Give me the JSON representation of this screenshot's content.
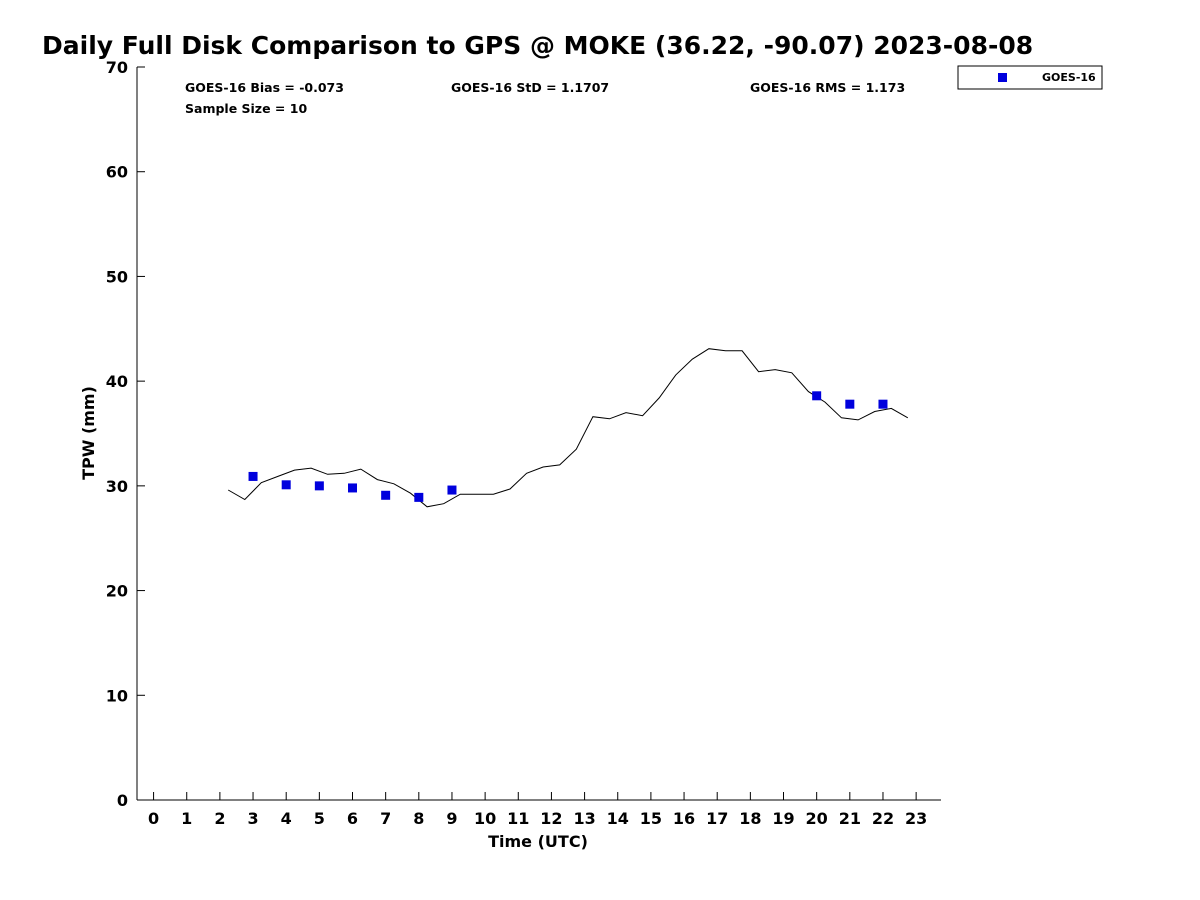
{
  "chart_data": {
    "type": "line",
    "title": "Daily Full Disk Comparison to GPS @ MOKE (36.22, -90.07) 2023-08-08",
    "xlabel": "Time (UTC)",
    "ylabel": "TPW (mm)",
    "xlim": [
      -0.5,
      23.75
    ],
    "ylim": [
      0,
      70
    ],
    "xticks": [
      "0",
      "1",
      "2",
      "3",
      "4",
      "5",
      "6",
      "7",
      "8",
      "9",
      "10",
      "11",
      "12",
      "13",
      "14",
      "15",
      "16",
      "17",
      "18",
      "19",
      "20",
      "21",
      "22",
      "23"
    ],
    "yticks": [
      "0",
      "10",
      "20",
      "30",
      "40",
      "50",
      "60",
      "70"
    ],
    "grid": false,
    "legend_position": "outside-top-right",
    "stats": {
      "bias": "GOES-16 Bias = -0.073",
      "sample": "Sample Size = 10",
      "std": "GOES-16 StD = 1.1707",
      "rms": "GOES-16 RMS = 1.173"
    },
    "series": [
      {
        "kind": "line",
        "color": "#000000",
        "x": [
          2.25,
          2.75,
          3.25,
          3.75,
          4.25,
          4.75,
          5.25,
          5.75,
          6.25,
          6.75,
          7.25,
          7.75,
          8.25,
          8.75,
          9.25,
          9.75,
          10.25,
          10.75,
          11.25,
          11.75,
          12.25,
          12.75,
          13.25,
          13.75,
          14.25,
          14.75,
          15.25,
          15.75,
          16.25,
          16.75,
          17.25,
          17.75,
          18.25,
          18.75,
          19.25,
          19.75,
          20.25,
          20.75,
          21.25,
          21.75,
          22.25,
          22.75
        ],
        "y": [
          29.6,
          28.7,
          30.3,
          30.9,
          31.5,
          31.7,
          31.1,
          31.2,
          31.6,
          30.6,
          30.2,
          29.3,
          28.0,
          28.3,
          29.2,
          29.2,
          29.2,
          29.7,
          31.2,
          31.8,
          32.0,
          33.5,
          36.6,
          36.4,
          37.0,
          36.7,
          38.4,
          40.6,
          42.1,
          43.1,
          42.9,
          42.9,
          40.9,
          41.1,
          40.8,
          39.0,
          38.0,
          36.5,
          36.3,
          37.1,
          37.4,
          36.5
        ]
      },
      {
        "kind": "scatter",
        "name": "GOES-16",
        "color": "#0000dd",
        "marker": "square",
        "x": [
          3,
          4,
          5,
          6,
          7,
          8,
          9,
          20,
          21,
          22
        ],
        "y": [
          30.9,
          30.1,
          30.0,
          29.8,
          29.1,
          28.9,
          29.6,
          38.6,
          37.8,
          37.8
        ]
      }
    ]
  }
}
